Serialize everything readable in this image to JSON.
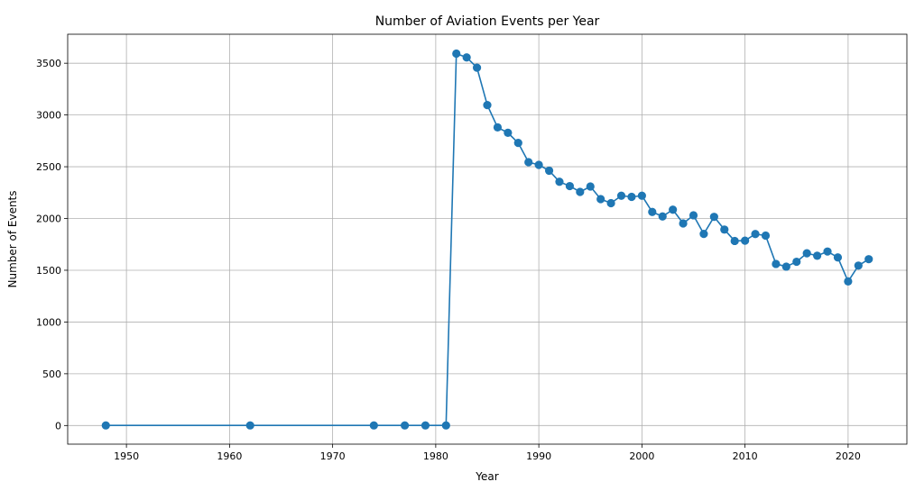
{
  "chart_data": {
    "type": "line",
    "title": "Number of Aviation Events per Year",
    "xlabel": "Year",
    "ylabel": "Number of Events",
    "xlim": [
      1944.3,
      2025.7
    ],
    "ylim": [
      -180,
      3780
    ],
    "xticks": [
      1950,
      1960,
      1970,
      1980,
      1990,
      2000,
      2010,
      2020
    ],
    "yticks": [
      0,
      500,
      1000,
      1500,
      2000,
      2500,
      3000,
      3500
    ],
    "grid": true,
    "marker": "circle",
    "color": "#1f77b4",
    "series": [
      {
        "x": [
          1948,
          1962,
          1974,
          1977,
          1979,
          1981,
          1982,
          1983,
          1984,
          1985,
          1986,
          1987,
          1988,
          1989,
          1990,
          1991,
          1992,
          1993,
          1994,
          1995,
          1996,
          1997,
          1998,
          1999,
          2000,
          2001,
          2002,
          2003,
          2004,
          2005,
          2006,
          2007,
          2008,
          2009,
          2010,
          2011,
          2012,
          2013,
          2014,
          2015,
          2016,
          2017,
          2018,
          2019,
          2020,
          2021,
          2022
        ],
        "values": [
          1,
          1,
          1,
          1,
          1,
          1,
          3593,
          3556,
          3457,
          3096,
          2880,
          2828,
          2730,
          2544,
          2518,
          2462,
          2355,
          2313,
          2257,
          2309,
          2187,
          2148,
          2220,
          2209,
          2220,
          2063,
          2020,
          2085,
          1952,
          2031,
          1851,
          2016,
          1893,
          1783,
          1786,
          1850,
          1835,
          1561,
          1535,
          1582,
          1664,
          1640,
          1681,
          1624,
          1392,
          1545,
          1607
        ]
      }
    ]
  }
}
